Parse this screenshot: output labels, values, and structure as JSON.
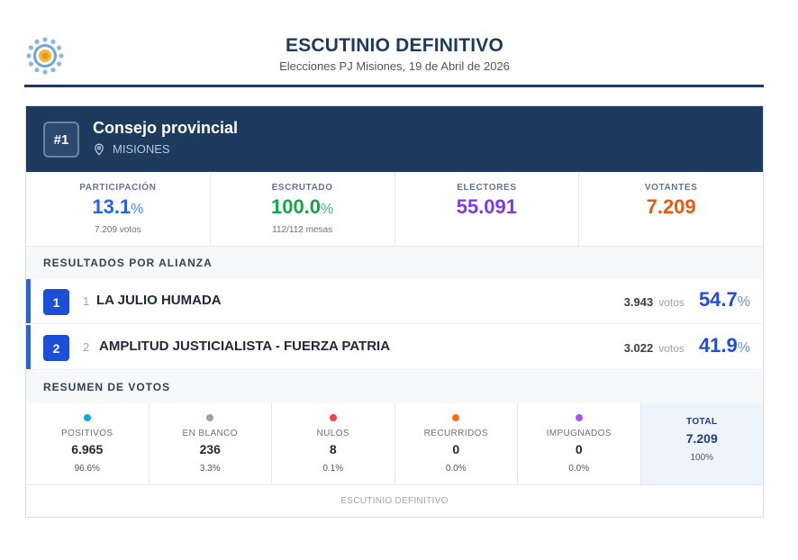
{
  "header": {
    "title": "ESCUTINIO DEFINITIVO",
    "subtitle": "Elecciones PJ Misiones, 19 de Abril de 2026",
    "logo_icon": "sun-emblem-logo"
  },
  "card": {
    "badge": "#1",
    "title": "Consejo provincial",
    "location": "MISIONES",
    "location_icon": "location-pin-icon"
  },
  "stats": [
    {
      "label": "PARTICIPACIÓN",
      "value": "13.1",
      "unit": "%",
      "sub": "7.209 votos",
      "color": "#2563eb"
    },
    {
      "label": "ESCRUTADO",
      "value": "100.0",
      "unit": "%",
      "sub": "112/112 mesas",
      "color": "#16a34a"
    },
    {
      "label": "ELECTORES",
      "value": "55.091",
      "unit": "",
      "sub": "",
      "color": "#7c3aed"
    },
    {
      "label": "VOTANTES",
      "value": "7.209",
      "unit": "",
      "sub": "",
      "color": "#ea580c"
    }
  ],
  "results": {
    "section_label": "RESULTADOS POR ALIANZA",
    "rows": [
      {
        "rank": "1",
        "number": "1",
        "name": "LA JULIO HUMADA",
        "votes": "3.943",
        "votes_label": "votos",
        "pct": "54.7",
        "unit": "%"
      },
      {
        "rank": "2",
        "number": "2",
        "name": "AMPLITUD JUSTICIALISTA - FUERZA PATRIA",
        "votes": "3.022",
        "votes_label": "votos",
        "pct": "41.9",
        "unit": "%"
      }
    ]
  },
  "summary": {
    "section_label": "RESUMEN DE VOTOS",
    "items": [
      {
        "label": "POSITIVOS",
        "value": "6.965",
        "pct": "96.6%",
        "color": "#0ea5e9"
      },
      {
        "label": "EN BLANCO",
        "value": "236",
        "pct": "3.3%",
        "color": "#9ca3af"
      },
      {
        "label": "NULOS",
        "value": "8",
        "pct": "0.1%",
        "color": "#ef4444"
      },
      {
        "label": "RECURRIDOS",
        "value": "0",
        "pct": "0.0%",
        "color": "#f97316"
      },
      {
        "label": "IMPUGNADOS",
        "value": "0",
        "pct": "0.0%",
        "color": "#a855f7"
      }
    ],
    "total": {
      "label": "TOTAL",
      "value": "7.209",
      "pct": "100%"
    }
  },
  "footer": "ESCUTINIO DEFINITIVO"
}
